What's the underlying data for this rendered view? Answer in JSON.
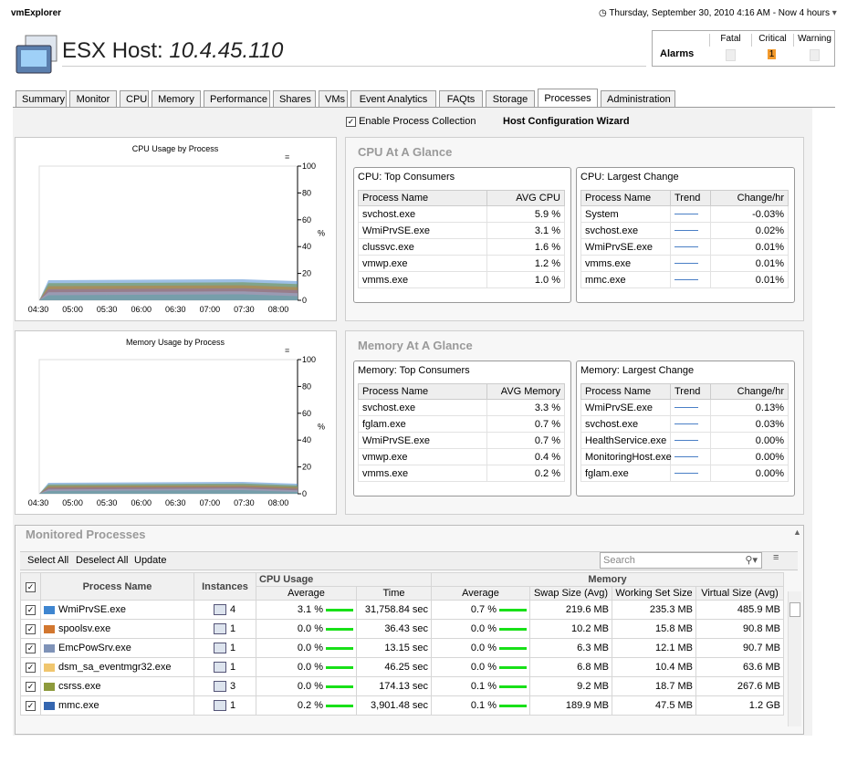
{
  "header": {
    "app_name": "vmExplorer",
    "datetime": "Thursday, September 30, 2010 4:16 AM - Now 4 hours",
    "title_prefix": "ESX Host:",
    "title_host": "10.4.45.110"
  },
  "alarms": {
    "label": "Alarms",
    "columns": [
      "Fatal",
      "Critical",
      "Warning"
    ],
    "values": [
      "",
      "1",
      ""
    ]
  },
  "tabs": {
    "items": [
      "Summary",
      "Monitor",
      "CPU",
      "Memory",
      "Performance",
      "Shares",
      "VMs",
      "Event Analytics",
      "FAQts",
      "Storage",
      "Processes",
      "Administration"
    ],
    "active": "Processes"
  },
  "options": {
    "enable_collection": "Enable Process Collection",
    "wizard": "Host Configuration Wizard"
  },
  "cpu_chart": {
    "title": "CPU Usage by Process",
    "x_labels": [
      "04:30",
      "05:00",
      "05:30",
      "06:00",
      "06:30",
      "07:00",
      "07:30",
      "08:00"
    ],
    "ylim": [
      0,
      100
    ],
    "yticks": [
      0,
      20,
      40,
      60,
      80,
      100
    ],
    "y_unit": "%"
  },
  "memory_chart": {
    "title": "Memory Usage by Process",
    "x_labels": [
      "04:30",
      "05:00",
      "05:30",
      "06:00",
      "06:30",
      "07:00",
      "07:30",
      "08:00"
    ],
    "ylim": [
      0,
      100
    ],
    "yticks": [
      0,
      20,
      40,
      60,
      80,
      100
    ],
    "y_unit": "%"
  },
  "cpu_glance": {
    "title": "CPU At A Glance",
    "top": {
      "title": "CPU: Top Consumers",
      "columns": [
        "Process Name",
        "AVG CPU"
      ],
      "rows": [
        [
          "svchost.exe",
          "5.9 %"
        ],
        [
          "WmiPrvSE.exe",
          "3.1 %"
        ],
        [
          "clussvc.exe",
          "1.6 %"
        ],
        [
          "vmwp.exe",
          "1.2 %"
        ],
        [
          "vmms.exe",
          "1.0 %"
        ]
      ]
    },
    "change": {
      "title": "CPU: Largest Change",
      "columns": [
        "Process Name",
        "Trend",
        "Change/hr"
      ],
      "rows": [
        [
          "System",
          "-0.03%"
        ],
        [
          "svchost.exe",
          "0.02%"
        ],
        [
          "WmiPrvSE.exe",
          "0.01%"
        ],
        [
          "vmms.exe",
          "0.01%"
        ],
        [
          "mmc.exe",
          "0.01%"
        ]
      ]
    }
  },
  "memory_glance": {
    "title": "Memory At A Glance",
    "top": {
      "title": "Memory: Top Consumers",
      "columns": [
        "Process Name",
        "AVG Memory"
      ],
      "rows": [
        [
          "svchost.exe",
          "3.3 %"
        ],
        [
          "fglam.exe",
          "0.7 %"
        ],
        [
          "WmiPrvSE.exe",
          "0.7 %"
        ],
        [
          "vmwp.exe",
          "0.4 %"
        ],
        [
          "vmms.exe",
          "0.2 %"
        ]
      ]
    },
    "change": {
      "title": "Memory: Largest Change",
      "columns": [
        "Process Name",
        "Trend",
        "Change/hr"
      ],
      "rows": [
        [
          "WmiPrvSE.exe",
          "0.13%"
        ],
        [
          "svchost.exe",
          "0.03%"
        ],
        [
          "HealthService.exe",
          "0.00%"
        ],
        [
          "MonitoringHost.exe",
          "0.00%"
        ],
        [
          "fglam.exe",
          "0.00%"
        ]
      ]
    }
  },
  "processes": {
    "title": "Monitored Processes",
    "toolbar": [
      "Select All",
      "Deselect All",
      "Update"
    ],
    "search_placeholder": "Search",
    "group_headers": [
      "CPU Usage",
      "Memory"
    ],
    "columns": [
      "Process Name",
      "Instances",
      "Average",
      "Time",
      "Average",
      "Swap Size (Avg)",
      "Working Set Size",
      "Virtual Size (Avg)"
    ],
    "rows": [
      {
        "color": "#3f86d0",
        "cells": [
          "WmiPrvSE.exe",
          "4",
          "3.1 %",
          "31,758.84 sec",
          "0.7 %",
          "219.6 MB",
          "235.3 MB",
          "485.9 MB"
        ]
      },
      {
        "color": "#d2772f",
        "cells": [
          "spoolsv.exe",
          "1",
          "0.0 %",
          "36.43 sec",
          "0.0 %",
          "10.2 MB",
          "15.8 MB",
          "90.8 MB"
        ]
      },
      {
        "color": "#7f93b8",
        "cells": [
          "EmcPowSrv.exe",
          "1",
          "0.0 %",
          "13.15 sec",
          "0.0 %",
          "6.3 MB",
          "12.1 MB",
          "90.7 MB"
        ]
      },
      {
        "color": "#f0c66e",
        "cells": [
          "dsm_sa_eventmgr32.exe",
          "1",
          "0.0 %",
          "46.25 sec",
          "0.0 %",
          "6.8 MB",
          "10.4 MB",
          "63.6 MB"
        ]
      },
      {
        "color": "#8d9a3c",
        "cells": [
          "csrss.exe",
          "3",
          "0.0 %",
          "174.13 sec",
          "0.1 %",
          "9.2 MB",
          "18.7 MB",
          "267.6 MB"
        ]
      },
      {
        "color": "#3466b0",
        "cells": [
          "mmc.exe",
          "1",
          "0.2 %",
          "3,901.48 sec",
          "0.1 %",
          "189.9 MB",
          "47.5 MB",
          "1.2 GB"
        ]
      }
    ]
  }
}
